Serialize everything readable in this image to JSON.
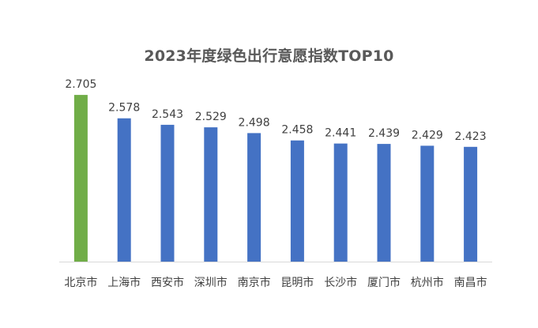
{
  "chart_data": {
    "type": "bar",
    "title": "2023年度绿色出行意愿指数TOP10",
    "categories": [
      "北京市",
      "上海市",
      "西安市",
      "深圳市",
      "南京市",
      "昆明市",
      "长沙市",
      "厦门市",
      "杭州市",
      "南昌市"
    ],
    "values": [
      2.705,
      2.578,
      2.543,
      2.529,
      2.498,
      2.458,
      2.441,
      2.439,
      2.429,
      2.423
    ],
    "data_labels": [
      "2.705",
      "2.578",
      "2.543",
      "2.529",
      "2.498",
      "2.458",
      "2.441",
      "2.439",
      "2.429",
      "2.423"
    ],
    "highlight_index": 0,
    "colors": {
      "highlight": "#70AD47",
      "default": "#4472C4",
      "axis": "#D9D9D9",
      "label": "#404040",
      "title": "#595959"
    },
    "xlabel": "",
    "ylabel": "",
    "ylim": [
      1.8,
      2.8
    ],
    "grid": false,
    "legend": "none"
  }
}
